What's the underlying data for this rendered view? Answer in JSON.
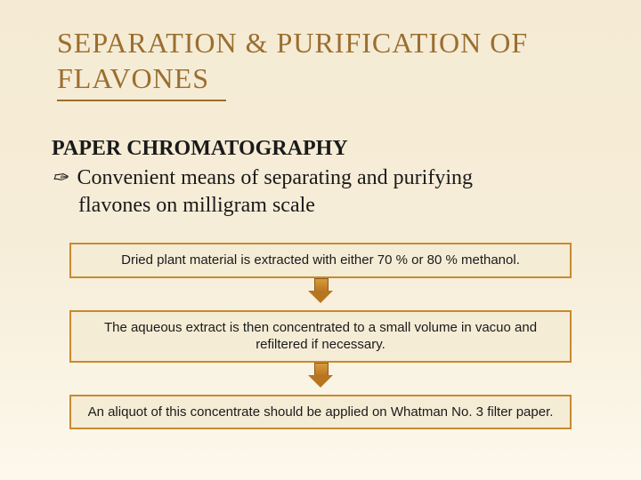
{
  "slide": {
    "title_line1": "SEPARATION & PURIFICATION OF",
    "title_line2": "FLAVONES",
    "subheading": "PAPER CHROMATOGRAPHY",
    "bullet_text_line1": "Convenient means of separating and purifying",
    "bullet_text_line2": "flavones on milligram scale",
    "steps": [
      "Dried plant material is extracted with either 70 % or 80 % methanol.",
      "The aqueous extract is then concentrated to a small volume in vacuo and refiltered if necessary.",
      "An aliquot of this concentrate should be applied on Whatman No. 3 filter paper."
    ]
  },
  "style": {
    "background_gradient_top": "#f5ebd4",
    "background_gradient_bottom": "#fdf8ec",
    "title_color": "#9b6e30",
    "title_fontsize": 32,
    "subheading_fontsize": 24,
    "body_fontsize": 24,
    "step_font_family": "Arial",
    "step_fontsize": 15,
    "step_box_border": "#c78a2e",
    "step_box_bg": "#f5ecd6",
    "step_box_width": 564,
    "arrow_fill_top": "#d89b3a",
    "arrow_fill_bottom": "#b87520",
    "arrow_border": "#8a5a18",
    "underline_width": 190,
    "underline_color": "#9b6e30"
  }
}
